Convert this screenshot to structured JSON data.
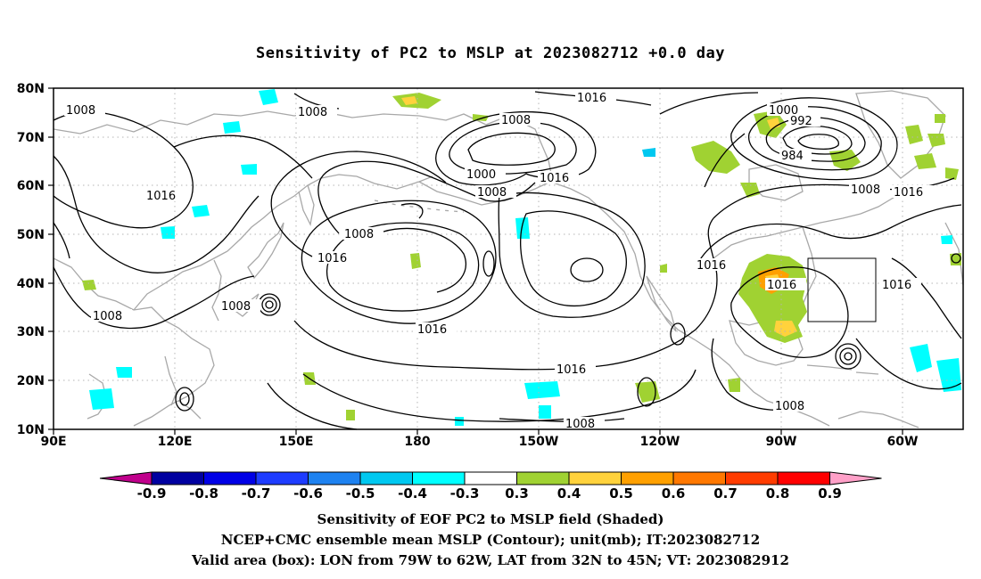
{
  "title": "Sensitivity of PC2 to MSLP at 2023082712 +0.0 day",
  "map": {
    "lat_ticks": [
      "80N",
      "70N",
      "60N",
      "50N",
      "40N",
      "30N",
      "20N",
      "10N"
    ],
    "lon_ticks": [
      "90E",
      "120E",
      "150E",
      "180",
      "150W",
      "120W",
      "90W",
      "60W"
    ],
    "extent": {
      "lon_min_east": 90,
      "lon_max_east": 315,
      "lat_min": 10,
      "lat_max": 80
    },
    "contour_labels": {
      "c1008": "1008",
      "c1016": "1016",
      "c1000": "1000",
      "c992": "992",
      "c984": "984"
    },
    "valid_box": {
      "lon_west": "79W",
      "lon_east": "62W",
      "lat_south": "32N",
      "lat_north": "45N"
    }
  },
  "colorbar": {
    "labels": [
      "-0.9",
      "-0.8",
      "-0.7",
      "-0.6",
      "-0.5",
      "-0.4",
      "-0.3",
      "0.3",
      "0.4",
      "0.5",
      "0.6",
      "0.7",
      "0.8",
      "0.9"
    ],
    "colors": [
      "#c0008c",
      "#0000a0",
      "#0000e6",
      "#1e3cff",
      "#1e82f0",
      "#00c8f0",
      "#00ffff",
      "#ffffff",
      "#a0d232",
      "#ffd23c",
      "#ffa000",
      "#ff7800",
      "#ff3c00",
      "#ff0000",
      "#ffa0c8"
    ]
  },
  "captions": {
    "line1": "Sensitivity of EOF PC2 to MSLP field (Shaded)",
    "line2": "NCEP+CMC ensemble mean MSLP (Contour); unit(mb); IT:2023082712",
    "line3": "Valid area (box): LON from 79W to 62W, LAT from 32N to 45N; VT: 2023082912"
  }
}
